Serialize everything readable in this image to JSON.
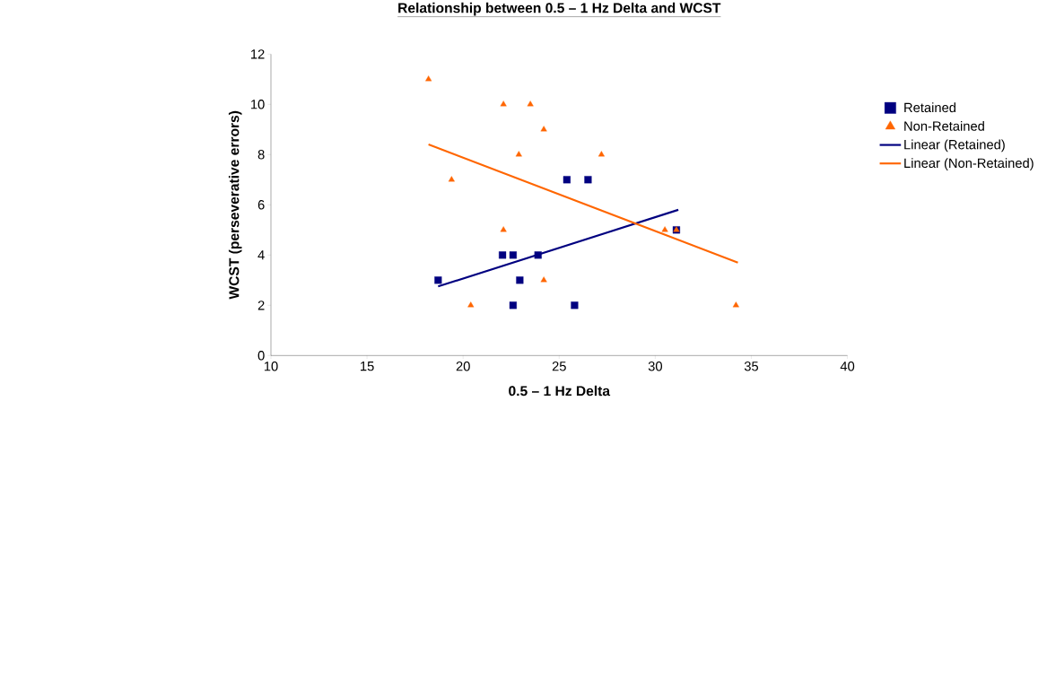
{
  "chart_data": {
    "type": "scatter",
    "title": "Relationship between 0.5 – 1 Hz Delta and WCST",
    "xlabel": "0.5 – 1 Hz Delta",
    "ylabel": "WCST (perseverative errors)",
    "xlim": [
      10,
      40
    ],
    "ylim": [
      0,
      12
    ],
    "xticks": [
      10,
      15,
      20,
      25,
      30,
      35,
      40
    ],
    "yticks": [
      0,
      2,
      4,
      6,
      8,
      10,
      12
    ],
    "legend": "right",
    "series": [
      {
        "name": "Retained",
        "color": "#000080",
        "marker": "square",
        "x": [
          18.7,
          22.05,
          22.6,
          22.95,
          22.6,
          23.9,
          25.4,
          26.5,
          25.8,
          31.1
        ],
        "values": [
          3,
          4,
          4,
          3,
          2,
          4,
          7,
          7,
          2,
          5
        ]
      },
      {
        "name": "Non-Retained",
        "color": "#ff6600",
        "marker": "triangle",
        "x": [
          18.2,
          19.4,
          20.4,
          22.1,
          22.1,
          22.9,
          23.5,
          24.2,
          24.2,
          27.2,
          30.5,
          31.1,
          34.2
        ],
        "values": [
          11,
          7,
          2,
          10,
          5,
          8,
          10,
          9,
          3,
          8,
          5,
          5,
          2
        ]
      },
      {
        "name": "Linear (Retained)",
        "type": "line",
        "color": "#000080",
        "marker": "none",
        "x": [
          18.7,
          31.2
        ],
        "values": [
          2.75,
          5.8
        ]
      },
      {
        "name": "Linear (Non-Retained)",
        "type": "line",
        "color": "#ff6600",
        "marker": "none",
        "x": [
          18.2,
          34.3
        ],
        "values": [
          8.4,
          3.7
        ]
      }
    ]
  }
}
